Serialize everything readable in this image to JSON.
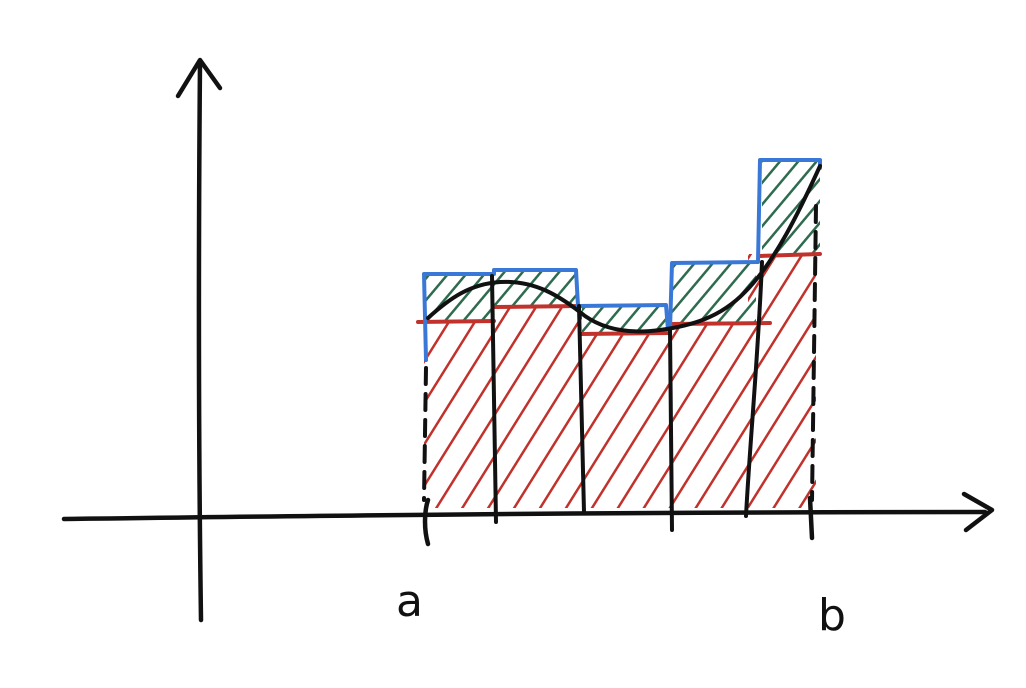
{
  "diagram": {
    "type": "upper-and-lower-riemann-sums",
    "x_start_label": "a",
    "x_end_label": "b",
    "intervals": 5,
    "colors": {
      "axes": "#111111",
      "curve": "#111111",
      "upper_sum": "#3a78d8",
      "lower_sum": "#c0322b",
      "difference_hatch": "#2f6b4e",
      "lower_hatch": "#c0322b"
    }
  }
}
